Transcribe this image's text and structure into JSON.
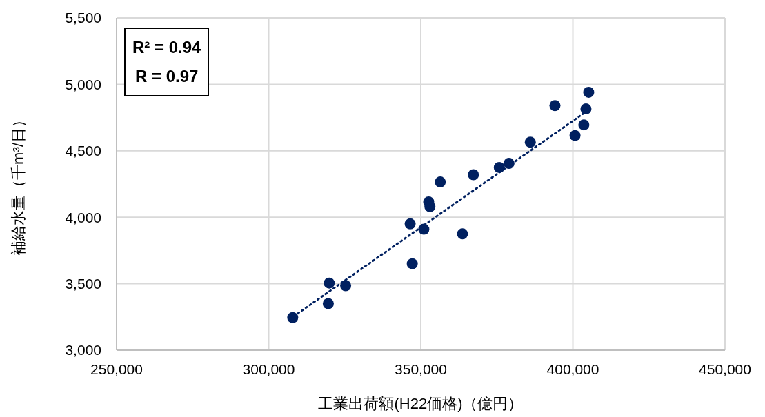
{
  "chart_data": {
    "type": "scatter",
    "xlabel": "工業出荷額(H22価格)（億円）",
    "ylabel": "補給水量（千m³/日）",
    "annotations": [
      "R² = 0.94",
      "R = 0.97"
    ],
    "xlim": [
      250000,
      450000
    ],
    "ylim": [
      3000,
      5500
    ],
    "xticks": [
      {
        "value": 250000,
        "label": "250,000"
      },
      {
        "value": 300000,
        "label": "300,000"
      },
      {
        "value": 350000,
        "label": "350,000"
      },
      {
        "value": 400000,
        "label": "400,000"
      },
      {
        "value": 450000,
        "label": "450,000"
      }
    ],
    "yticks": [
      {
        "value": 3000,
        "label": "3,000"
      },
      {
        "value": 3500,
        "label": "3,500"
      },
      {
        "value": 4000,
        "label": "4,000"
      },
      {
        "value": 4500,
        "label": "4,500"
      },
      {
        "value": 5000,
        "label": "5,000"
      },
      {
        "value": 5500,
        "label": "5,500"
      }
    ],
    "grid": true,
    "marker": "circle",
    "series": [
      {
        "color": "#002060",
        "x": [
          307900,
          319600,
          319900,
          325300,
          347200,
          346500,
          351000,
          352600,
          353000,
          356400,
          363700,
          367300,
          375800,
          379000,
          386000,
          394100,
          400700,
          403600,
          404300,
          405200
        ],
        "values": [
          3245,
          3350,
          3505,
          3485,
          3650,
          3950,
          3910,
          4115,
          4080,
          4265,
          3875,
          4320,
          4375,
          4405,
          4565,
          4840,
          4615,
          4695,
          4815,
          4940
        ]
      },
      {
        "type": "line",
        "color": "#002060",
        "line_style": "dotted",
        "marker": "none",
        "x": [
          307000,
          405000
        ],
        "values": [
          3235,
          4805
        ]
      }
    ]
  }
}
